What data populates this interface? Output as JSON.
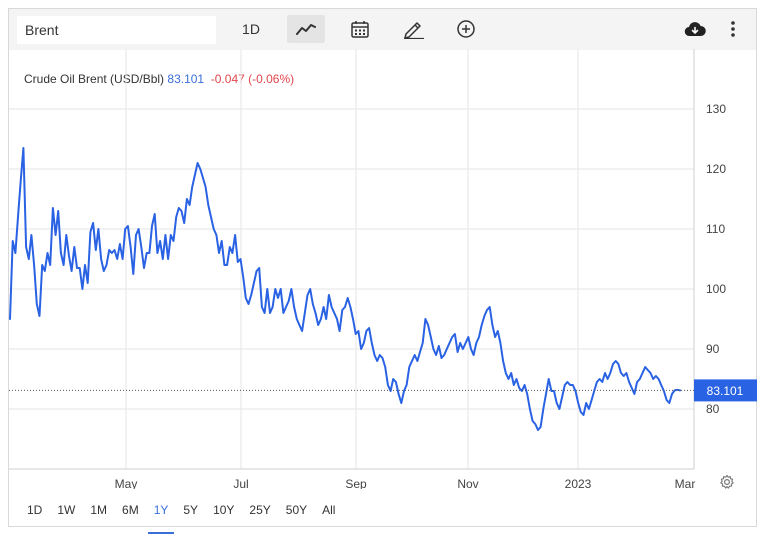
{
  "toolbar": {
    "search_value": "Brent",
    "interval_label": "1D",
    "icons": [
      "line-chart-icon",
      "calendar-icon",
      "pencil-icon",
      "plus-circle-icon",
      "cloud-download-icon",
      "more-vertical-icon"
    ]
  },
  "ranges": [
    "1D",
    "1W",
    "1M",
    "6M",
    "1Y",
    "5Y",
    "10Y",
    "25Y",
    "50Y",
    "All"
  ],
  "active_range": "1Y",
  "chart_data": {
    "type": "line",
    "title": "Crude Oil Brent (USD/Bbl)",
    "price": "83.101",
    "change": "-0.047 (-0.06%)",
    "last_value_label": "83.101",
    "ylim": [
      70,
      140
    ],
    "yticks": [
      "130",
      "120",
      "110",
      "100",
      "90",
      "80"
    ],
    "xticks": [
      "May",
      "Jul",
      "Sep",
      "Nov",
      "2023",
      "Mar"
    ],
    "grid": true,
    "colors": {
      "line": "#2a62e4",
      "badge": "#2a62e4",
      "title_price": "#3a6fd8",
      "change": "#e0474c"
    },
    "series": [
      {
        "values": [
          95,
          108,
          106,
          112,
          118,
          123.5,
          107,
          105,
          109,
          104,
          97.5,
          95.5,
          104,
          103,
          106,
          104,
          113.5,
          109,
          113,
          106,
          104,
          109,
          105.5,
          103,
          107,
          103.5,
          103.5,
          100,
          104,
          101,
          109.5,
          111,
          106.5,
          110,
          105,
          103,
          104,
          106.5,
          106,
          106.5,
          105,
          107.5,
          105,
          110,
          110.5,
          107,
          102.5,
          109,
          110,
          107,
          103.5,
          106,
          106,
          110.5,
          112.5,
          106,
          108,
          105,
          109,
          105,
          109,
          108,
          112,
          113.5,
          113,
          111,
          115,
          114,
          117,
          119,
          121,
          120,
          118.5,
          117,
          114,
          112,
          110,
          109,
          106,
          108,
          104,
          104,
          107,
          106,
          109,
          104.5,
          105,
          102,
          98.5,
          97.5,
          99,
          101,
          103,
          103.5,
          97,
          96,
          100,
          96,
          97,
          100,
          98.5,
          100,
          96,
          97,
          98,
          100,
          97,
          95,
          94,
          93,
          96,
          99,
          100,
          97.5,
          96,
          94,
          95,
          97,
          95,
          99,
          97,
          96,
          95,
          93,
          96.5,
          97,
          98.5,
          97,
          95,
          92.5,
          93,
          90,
          91,
          93,
          93.5,
          91,
          89,
          88,
          89,
          88.5,
          87,
          84,
          83,
          85,
          84.5,
          82.5,
          81,
          83,
          84,
          87,
          88,
          89,
          88,
          89.5,
          91,
          95,
          94,
          92,
          90,
          89,
          90.5,
          88.5,
          89,
          90,
          91,
          92,
          92.5,
          89.5,
          91,
          90,
          91,
          92,
          90,
          89,
          91,
          92,
          94,
          95.5,
          96.5,
          97,
          94,
          92,
          93,
          91,
          88,
          86,
          85,
          86,
          84,
          85,
          83.5,
          83,
          84,
          82.5,
          80,
          78,
          77.5,
          76.5,
          77,
          80,
          82.5,
          85,
          83,
          83,
          81,
          80,
          82,
          84,
          84.5,
          84,
          84,
          83,
          81,
          79.5,
          79,
          81,
          80,
          81.5,
          83,
          84.5,
          85,
          84.5,
          86,
          85,
          86,
          87.5,
          88,
          87.5,
          86,
          85.5,
          86,
          84.5,
          83.5,
          82.5,
          84.5,
          85,
          86,
          87,
          86.5,
          86,
          85,
          85.5,
          85,
          84,
          83,
          81.5,
          81,
          82.5,
          83.1,
          83.2,
          83.1
        ]
      }
    ]
  }
}
